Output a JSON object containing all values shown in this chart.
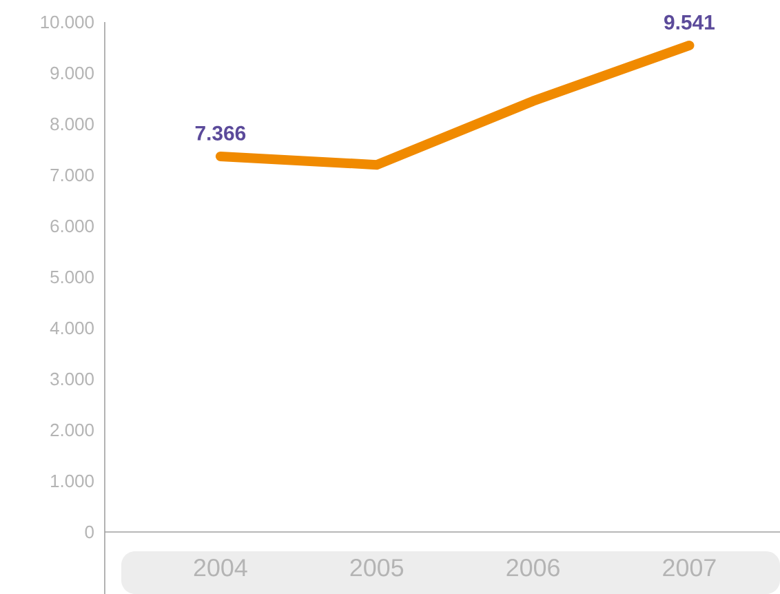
{
  "chart_data": {
    "type": "line",
    "categories": [
      "2004",
      "2005",
      "2006",
      "2007"
    ],
    "series": [
      {
        "color": "#f08a00",
        "values": [
          7366,
          7200,
          8450,
          9541
        ],
        "value_labels": [
          "7.366",
          null,
          null,
          "9.541"
        ]
      }
    ],
    "ylim": [
      0,
      10000
    ],
    "yticks": [
      {
        "value": 0,
        "label": "0"
      },
      {
        "value": 1000,
        "label": "1.000"
      },
      {
        "value": 2000,
        "label": "2.000"
      },
      {
        "value": 3000,
        "label": "3.000"
      },
      {
        "value": 4000,
        "label": "4.000"
      },
      {
        "value": 5000,
        "label": "5.000"
      },
      {
        "value": 6000,
        "label": "6.000"
      },
      {
        "value": 7000,
        "label": "7.000"
      },
      {
        "value": 8000,
        "label": "8.000"
      },
      {
        "value": 9000,
        "label": "9.000"
      },
      {
        "value": 10000,
        "label": "10.000"
      }
    ]
  }
}
